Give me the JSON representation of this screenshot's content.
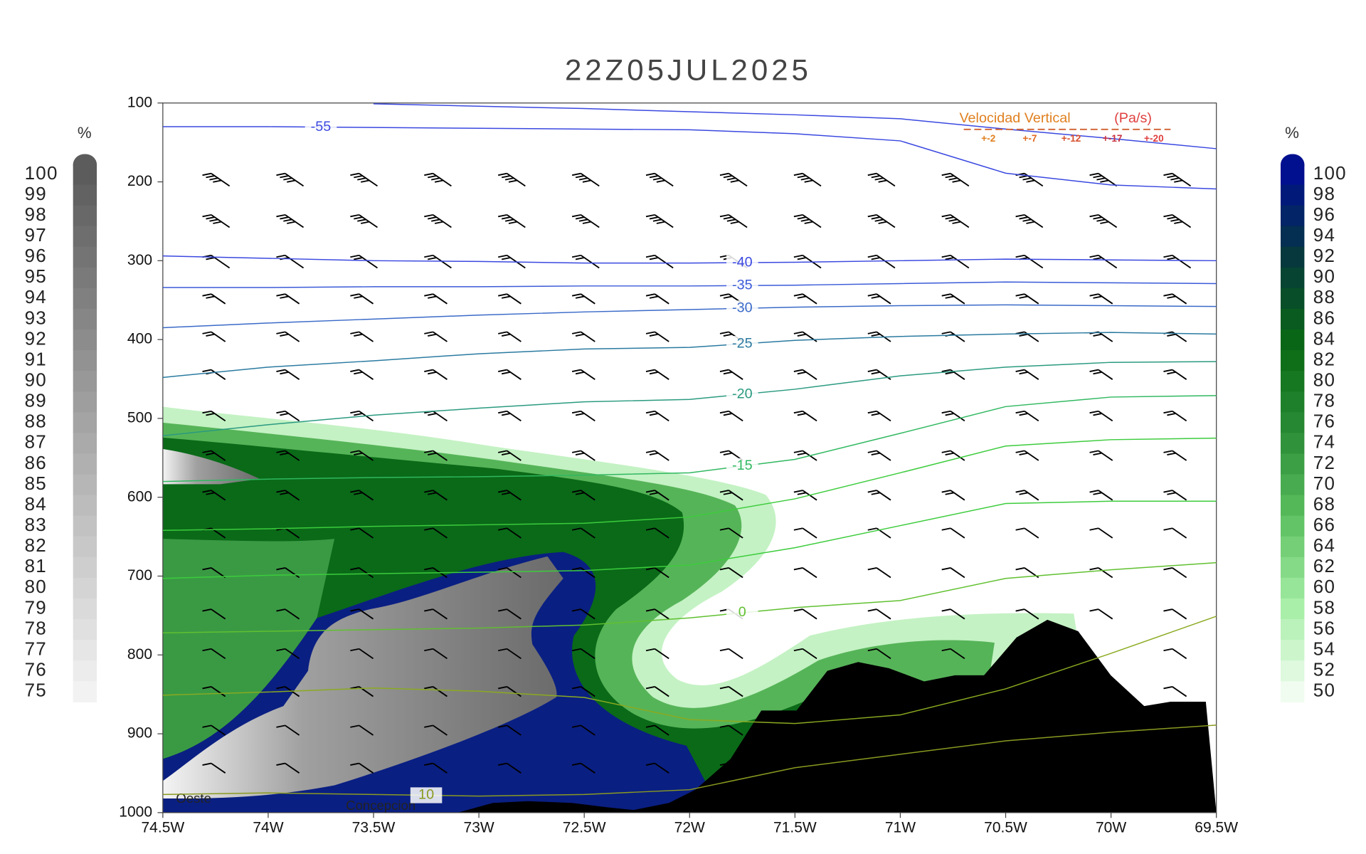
{
  "chart_data": {
    "type": "line",
    "title": "22Z05JUL2025",
    "x": [
      -74.5,
      -74,
      -73.5,
      -73,
      -72.5,
      -72,
      -71.5,
      -71,
      -70.5,
      -70,
      -69.5
    ],
    "xlim": [
      -74.5,
      -69.5
    ],
    "xticks": [
      {
        "value": -74.5,
        "label": "74.5W"
      },
      {
        "value": -74,
        "label": "74W"
      },
      {
        "value": -73.5,
        "label": "73.5W"
      },
      {
        "value": -73,
        "label": "73W"
      },
      {
        "value": -72.5,
        "label": "72.5W"
      },
      {
        "value": -72,
        "label": "72W"
      },
      {
        "value": -71.5,
        "label": "71.5W"
      },
      {
        "value": -71,
        "label": "71W"
      },
      {
        "value": -70.5,
        "label": "70.5W"
      },
      {
        "value": -70,
        "label": "70W"
      },
      {
        "value": -69.5,
        "label": "69.5W"
      }
    ],
    "ylim": [
      1000,
      100
    ],
    "yticks": [
      100,
      200,
      300,
      400,
      500,
      600,
      700,
      800,
      900,
      1000
    ],
    "series": [
      {
        "name": "-55",
        "color": "#3a48e0",
        "values": [
          130,
          130,
          131,
          132,
          133,
          134,
          139,
          148,
          189,
          204,
          209
        ]
      },
      {
        "color": "#3a48e0",
        "values": [
          null,
          null,
          101,
          104,
          107,
          111,
          115,
          120,
          133,
          145,
          158
        ]
      },
      {
        "name": "-40",
        "color": "#3a48e0",
        "values": [
          294,
          297,
          300,
          301,
          303,
          303,
          302,
          300,
          298,
          299,
          300
        ]
      },
      {
        "name": "-35",
        "color": "#3a5ad8",
        "values": [
          334,
          334,
          333,
          333,
          332,
          332,
          331,
          329,
          327,
          328,
          329
        ]
      },
      {
        "name": "-30",
        "color": "#3a6ac8",
        "values": [
          385,
          379,
          374,
          369,
          365,
          362,
          359,
          357,
          356,
          357,
          358
        ]
      },
      {
        "name": "-25",
        "color": "#2a7aa0",
        "values": [
          448,
          435,
          427,
          418,
          412,
          410,
          401,
          396,
          393,
          391,
          393
        ]
      },
      {
        "name": "-20",
        "color": "#2a9a80",
        "values": [
          522,
          508,
          496,
          487,
          479,
          476,
          463,
          446,
          435,
          429,
          428
        ]
      },
      {
        "name": "-15",
        "color": "#30b860",
        "values": [
          580,
          577,
          575,
          574,
          572,
          569,
          552,
          519,
          485,
          473,
          471
        ]
      },
      {
        "color": "#3ccc3c",
        "values": [
          642,
          640,
          637,
          635,
          633,
          625,
          602,
          569,
          535,
          527,
          525
        ]
      },
      {
        "color": "#3ccc3c",
        "values": [
          703,
          699,
          697,
          695,
          693,
          686,
          664,
          636,
          608,
          605,
          605
        ]
      },
      {
        "name": "0",
        "color": "#60c030",
        "values": [
          772,
          770,
          768,
          766,
          762,
          753,
          740,
          731,
          703,
          692,
          683
        ]
      },
      {
        "color": "#8aaa20",
        "values": [
          851,
          847,
          842,
          846,
          854,
          882,
          887,
          876,
          843,
          798,
          751
        ]
      },
      {
        "name": "10",
        "color": "#8a9a20",
        "values": [
          977,
          975,
          977,
          979,
          977,
          971,
          943,
          926,
          909,
          898,
          889
        ]
      }
    ],
    "colorbars": [
      {
        "unit": "%",
        "palette": [
          "#f2f2f2",
          "#5c5c5c"
        ],
        "labels": [
          100,
          99,
          98,
          97,
          96,
          95,
          94,
          93,
          92,
          91,
          90,
          89,
          88,
          87,
          86,
          85,
          84,
          83,
          82,
          81,
          80,
          79,
          78,
          77,
          76,
          75
        ]
      },
      {
        "unit": "%",
        "palette": [
          "#f0fcf0",
          "#a6eea6",
          "#5cc060",
          "#2a8c36",
          "#0a6a14",
          "#063a3a",
          "#00108e"
        ],
        "labels": [
          100,
          98,
          96,
          94,
          92,
          90,
          88,
          86,
          84,
          82,
          80,
          78,
          76,
          74,
          72,
          70,
          68,
          66,
          64,
          62,
          60,
          58,
          56,
          54,
          52,
          50
        ]
      }
    ],
    "legend": {
      "title": "Velocidad Vertical",
      "unit": "(Pa/s)",
      "levels": [
        "+-2",
        "+-7",
        "+-12",
        "+-17",
        "+-20"
      ]
    },
    "annotations": [
      "Oeste",
      "Concepcion"
    ]
  }
}
